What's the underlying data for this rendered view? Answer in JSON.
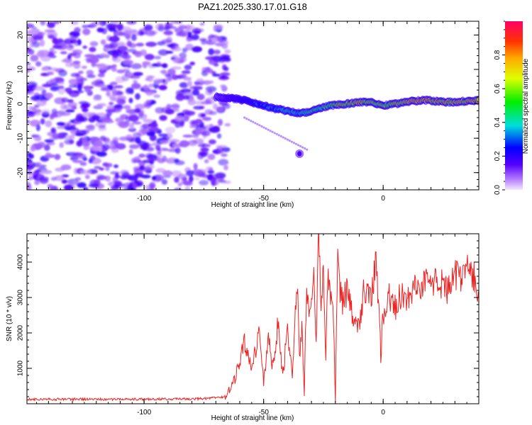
{
  "title": "PAZ1.2025.330.17.01.G18",
  "chart_data": [
    {
      "type": "heatmap",
      "name": "spectrogram",
      "xlabel": "Height of straight line (km)",
      "ylabel": "Frequency (Hz)",
      "xlim": [
        -149,
        40
      ],
      "ylim": [
        -25,
        24
      ],
      "xticks": [
        -100,
        -50,
        0
      ],
      "xtick_labels": [
        "-100",
        "-50",
        "0"
      ],
      "yticks": [
        -20,
        -10,
        0,
        10,
        20
      ],
      "ytick_labels": [
        "-20",
        "-10",
        "0",
        "10",
        "20"
      ],
      "noise_region_x": [
        -149,
        -65
      ],
      "noise_amplitude": 0.15,
      "signal_ridge": {
        "x": [
          -70,
          -62,
          -55,
          -50,
          -45,
          -40,
          -35,
          -32,
          -28,
          -22,
          -15,
          -10,
          -5,
          0,
          5,
          10,
          15,
          20,
          25,
          30,
          35,
          40
        ],
        "y": [
          2.0,
          1.5,
          0.5,
          -0.5,
          -1.5,
          -2.0,
          -2.8,
          -2.5,
          -1.5,
          -0.5,
          0.0,
          0.5,
          0.5,
          -0.5,
          0.0,
          0.5,
          1.0,
          1.0,
          0.5,
          0.5,
          0.8,
          1.0
        ],
        "amplitude": [
          0.12,
          0.25,
          0.35,
          0.4,
          0.45,
          0.5,
          0.5,
          0.55,
          0.6,
          0.7,
          0.8,
          0.85,
          0.75,
          0.7,
          0.75,
          0.85,
          0.9,
          0.95,
          0.9,
          0.85,
          0.9,
          0.9
        ]
      },
      "spurious_blob": {
        "x": -35,
        "y": -14.5
      },
      "colorbar": {
        "label": "Normalized spectral amplitude",
        "range": [
          0,
          1
        ],
        "ticks": [
          0,
          0.2,
          0.4,
          0.6,
          0.8
        ],
        "tick_labels": [
          "0.0",
          "0.2",
          "0.4",
          "0.6",
          "0.8"
        ]
      }
    },
    {
      "type": "line",
      "name": "snr",
      "xlabel": "Height of straight line (km)",
      "ylabel": "SNR (10 * v/v)",
      "xlim": [
        -149,
        40
      ],
      "ylim": [
        0,
        4800
      ],
      "xticks": [
        -100,
        -50,
        0
      ],
      "xtick_labels": [
        "-100",
        "-50",
        "0"
      ],
      "yticks": [
        1000,
        2000,
        3000,
        4000
      ],
      "ytick_labels": [
        "1000",
        "2000",
        "3000",
        "4000"
      ],
      "color": "#ee2222",
      "x": [
        -149,
        -130,
        -110,
        -90,
        -75,
        -66,
        -62,
        -60,
        -58,
        -55,
        -52,
        -50,
        -48,
        -46,
        -44,
        -42,
        -40,
        -38,
        -36,
        -35,
        -34,
        -33,
        -32,
        -31,
        -30,
        -29,
        -28,
        -27,
        -26,
        -25,
        -24,
        -23,
        -22,
        -21,
        -20,
        -19,
        -18,
        -17,
        -15,
        -13,
        -10,
        -8,
        -5,
        -3,
        -1,
        0,
        2,
        5,
        8,
        10,
        13,
        15,
        18,
        20,
        23,
        25,
        28,
        30,
        33,
        35,
        38,
        40
      ],
      "y": [
        120,
        130,
        125,
        130,
        140,
        200,
        700,
        1200,
        1700,
        1000,
        2000,
        600,
        1800,
        1000,
        2300,
        800,
        2100,
        900,
        3500,
        1300,
        2200,
        300,
        3600,
        2200,
        3000,
        4000,
        1500,
        4800,
        2700,
        3700,
        1100,
        3900,
        2600,
        3200,
        100,
        4200,
        3300,
        2900,
        3200,
        2600,
        2200,
        3300,
        2800,
        4200,
        1400,
        2500,
        3000,
        2700,
        3200,
        2800,
        3400,
        3000,
        3500,
        3200,
        3600,
        3300,
        3200,
        3700,
        3400,
        3800,
        3600,
        3000
      ]
    }
  ]
}
